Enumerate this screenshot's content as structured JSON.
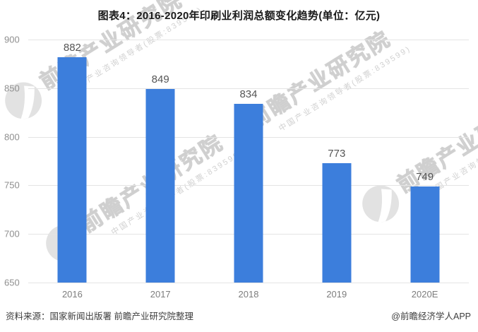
{
  "chart_data": {
    "type": "bar",
    "title": "图表4：2016-2020年印刷业利润总额变化趋势(单位：亿元)",
    "unit": "亿元",
    "categories": [
      "2016",
      "2017",
      "2018",
      "2019",
      "2020E"
    ],
    "values": [
      882,
      849,
      834,
      773,
      749
    ],
    "ylim": [
      650,
      900
    ],
    "ytick_step": 50,
    "yticks": [
      650,
      700,
      750,
      800,
      850,
      900
    ],
    "bar_color": "#3C7EDC",
    "grid": true,
    "legend": false,
    "xlabel": "",
    "ylabel": ""
  },
  "watermark": {
    "brand_text": "前瞻产业研究院",
    "brand_subtext": "中国产业咨询领导者(股票:839599)"
  },
  "footer": {
    "source": "资料来源：国家新闻出版署 前瞻产业研究院整理",
    "credit": "@前瞻经济学人APP"
  }
}
